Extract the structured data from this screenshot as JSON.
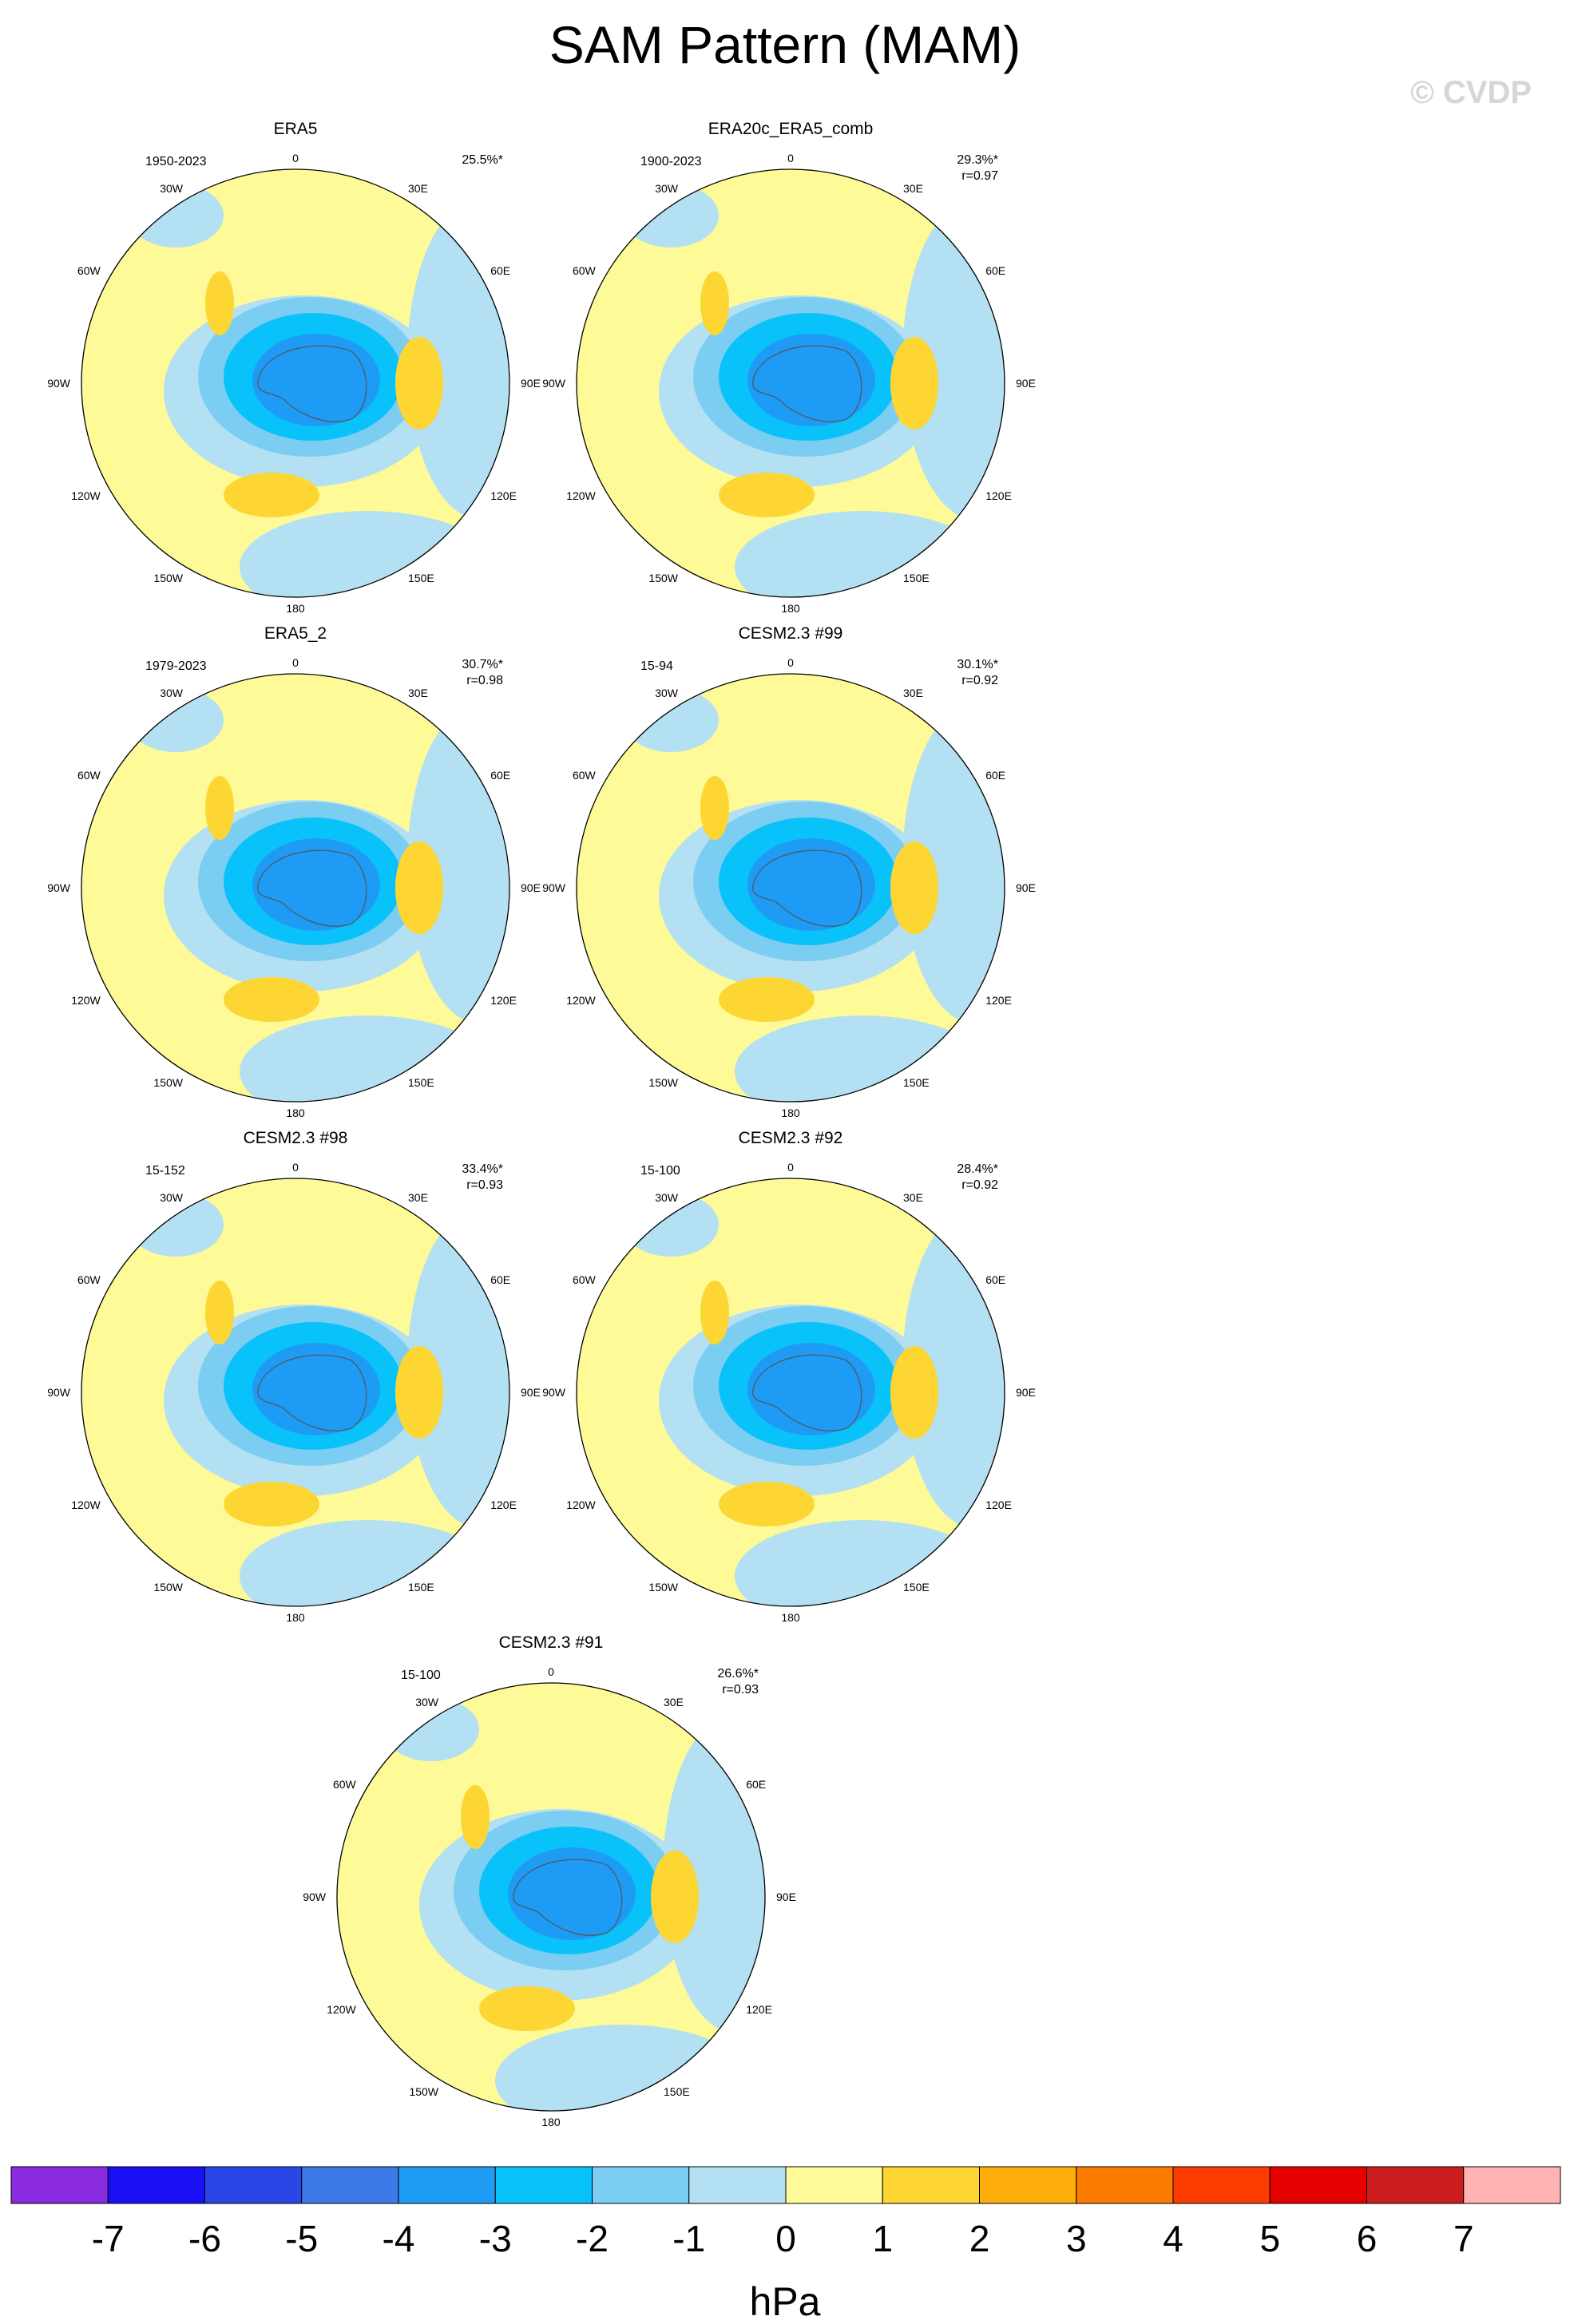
{
  "title": "SAM Pattern (MAM)",
  "watermark": "© CVDP",
  "longitude_labels": [
    "0",
    "30E",
    "60E",
    "90E",
    "120E",
    "150E",
    "180",
    "150W",
    "120W",
    "90W",
    "60W",
    "30W"
  ],
  "panels": [
    {
      "title": "ERA5",
      "period": "1950-2023",
      "variance": "25.5%*",
      "corr": ""
    },
    {
      "title": "ERA20c_ERA5_comb",
      "period": "1900-2023",
      "variance": "29.3%*",
      "corr": "r=0.97"
    },
    {
      "title": "ERA5_2",
      "period": "1979-2023",
      "variance": "30.7%*",
      "corr": "r=0.98"
    },
    {
      "title": "CESM2.3 #99",
      "period": "15-94",
      "variance": "30.1%*",
      "corr": "r=0.92"
    },
    {
      "title": "CESM2.3 #98",
      "period": "15-152",
      "variance": "33.4%*",
      "corr": "r=0.93"
    },
    {
      "title": "CESM2.3 #92",
      "period": "15-100",
      "variance": "28.4%*",
      "corr": "r=0.92"
    },
    {
      "title": "CESM2.3 #91",
      "period": "15-100",
      "variance": "26.6%*",
      "corr": "r=0.93"
    }
  ],
  "colorbar": {
    "unit": "hPa",
    "tick_labels": [
      "-7",
      "-6",
      "-5",
      "-4",
      "-3",
      "-2",
      "-1",
      "0",
      "1",
      "2",
      "3",
      "4",
      "5",
      "6",
      "7"
    ],
    "colors": [
      "#8a2be2",
      "#1a10f5",
      "#2b46e6",
      "#3c7ae8",
      "#1e9bf5",
      "#0ac2fa",
      "#7ccdf2",
      "#b3e0f2",
      "#fefa97",
      "#fdd633",
      "#fdae0a",
      "#fd7c00",
      "#fd3a00",
      "#e60000",
      "#cc1e1e",
      "#ffb3b3"
    ]
  }
}
